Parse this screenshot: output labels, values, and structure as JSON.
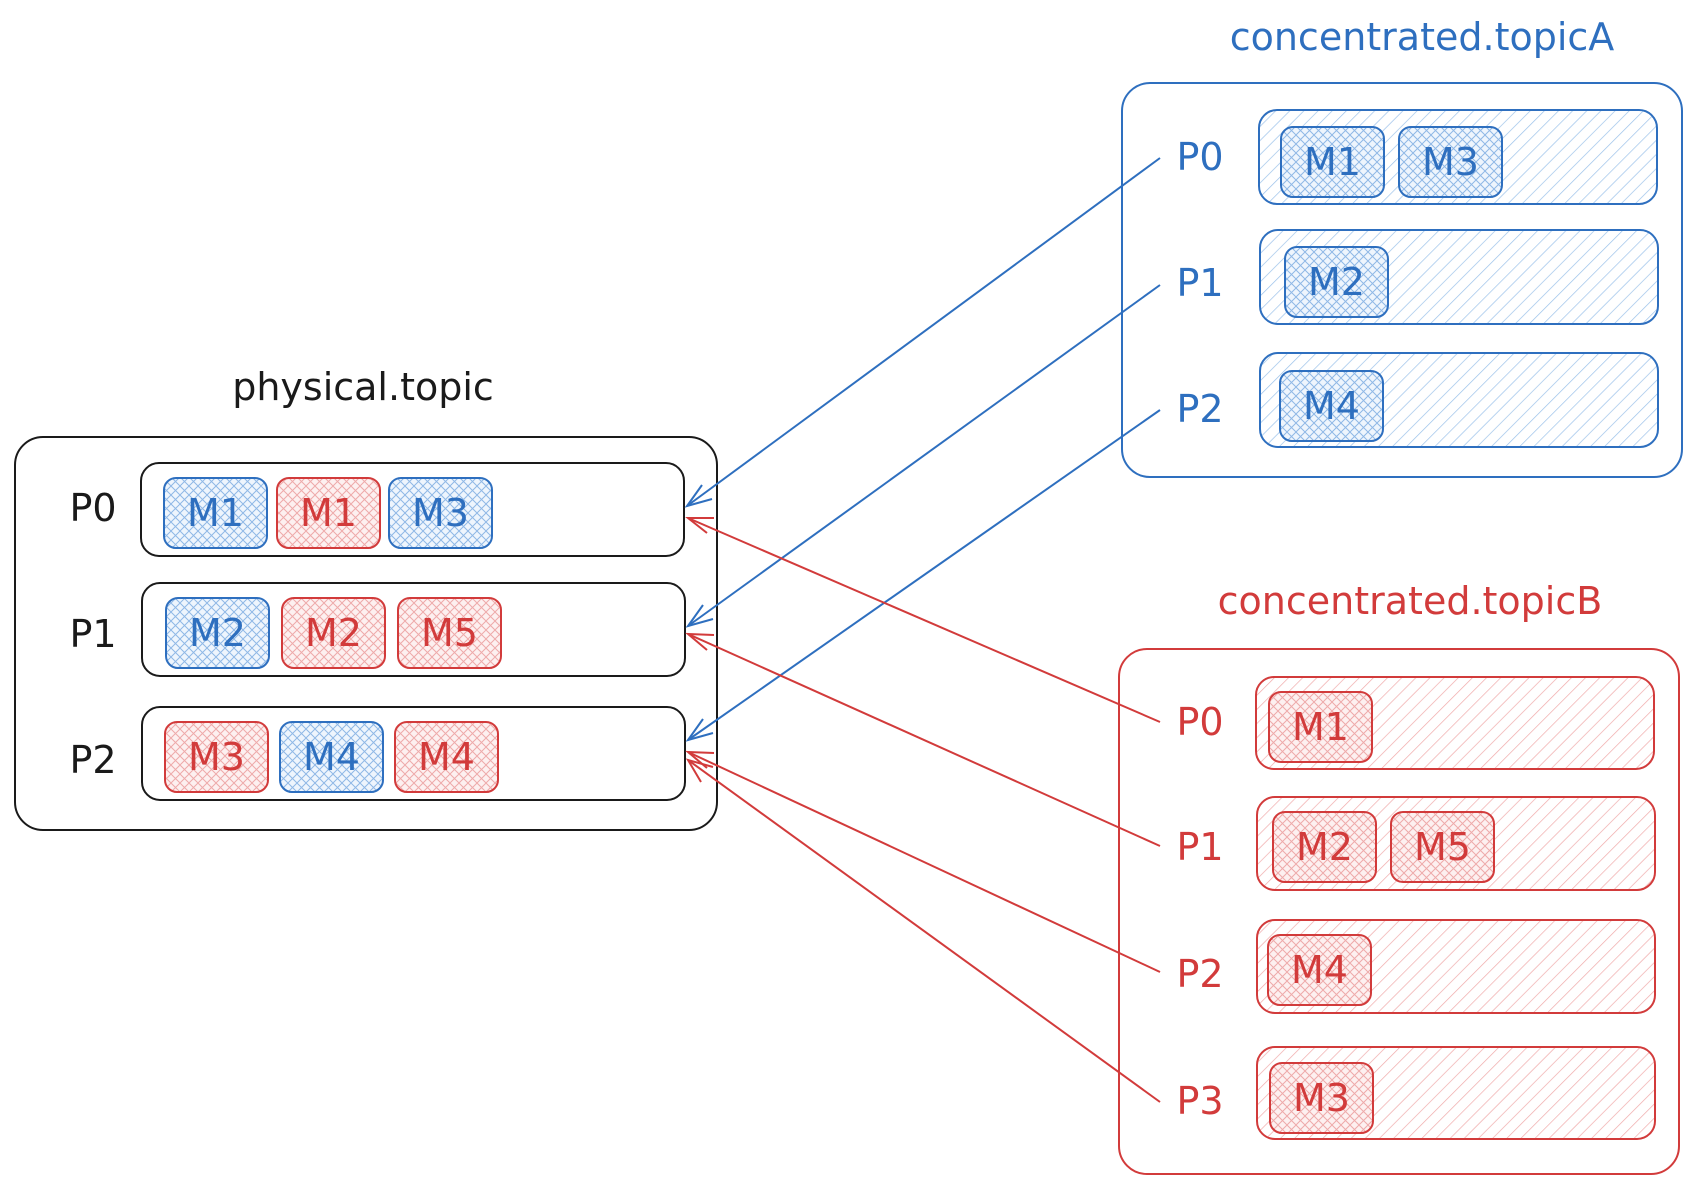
{
  "physical": {
    "title": "physical.topic",
    "color": "#1a1a1a",
    "partitions": [
      {
        "label": "P0",
        "messages": [
          {
            "text": "M1",
            "topic": "A"
          },
          {
            "text": "M1",
            "topic": "B"
          },
          {
            "text": "M3",
            "topic": "A"
          }
        ]
      },
      {
        "label": "P1",
        "messages": [
          {
            "text": "M2",
            "topic": "A"
          },
          {
            "text": "M2",
            "topic": "B"
          },
          {
            "text": "M5",
            "topic": "B"
          }
        ]
      },
      {
        "label": "P2",
        "messages": [
          {
            "text": "M3",
            "topic": "B"
          },
          {
            "text": "M4",
            "topic": "A"
          },
          {
            "text": "M4",
            "topic": "B"
          }
        ]
      }
    ]
  },
  "topicA": {
    "title": "concentrated.topicA",
    "color": "#2e6fbf",
    "partitions": [
      {
        "label": "P0",
        "messages": [
          {
            "text": "M1"
          },
          {
            "text": "M3"
          }
        ]
      },
      {
        "label": "P1",
        "messages": [
          {
            "text": "M2"
          }
        ]
      },
      {
        "label": "P2",
        "messages": [
          {
            "text": "M4"
          }
        ]
      }
    ]
  },
  "topicB": {
    "title": "concentrated.topicB",
    "color": "#d23b3b",
    "partitions": [
      {
        "label": "P0",
        "messages": [
          {
            "text": "M1"
          }
        ]
      },
      {
        "label": "P1",
        "messages": [
          {
            "text": "M2"
          },
          {
            "text": "M5"
          }
        ]
      },
      {
        "label": "P2",
        "messages": [
          {
            "text": "M4"
          }
        ]
      },
      {
        "label": "P3",
        "messages": [
          {
            "text": "M3"
          }
        ]
      }
    ]
  }
}
